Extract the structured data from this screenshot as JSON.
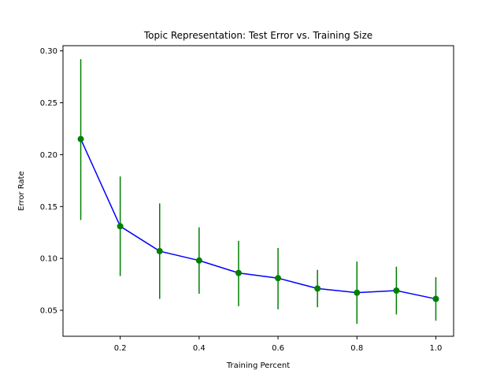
{
  "chart_data": {
    "type": "line",
    "title": "Topic Representation: Test Error vs. Training Size",
    "xlabel": "Training Percent",
    "ylabel": "Error Rate",
    "xlim": [
      0.055,
      1.045
    ],
    "ylim": [
      0.025,
      0.305
    ],
    "xticks": [
      0.2,
      0.4,
      0.6,
      0.8,
      1.0
    ],
    "xtick_labels": [
      "0.2",
      "0.4",
      "0.6",
      "0.8",
      "1.0"
    ],
    "yticks": [
      0.05,
      0.1,
      0.15,
      0.2,
      0.25,
      0.3
    ],
    "ytick_labels": [
      "0.05",
      "0.10",
      "0.15",
      "0.20",
      "0.25",
      "0.30"
    ],
    "grid": false,
    "series": [
      {
        "x": [
          0.1,
          0.2,
          0.3,
          0.4,
          0.5,
          0.6,
          0.7,
          0.8,
          0.9,
          1.0
        ],
        "y": [
          0.215,
          0.131,
          0.107,
          0.098,
          0.086,
          0.081,
          0.071,
          0.067,
          0.069,
          0.061
        ],
        "yerr_low": [
          0.137,
          0.083,
          0.061,
          0.066,
          0.054,
          0.051,
          0.053,
          0.037,
          0.046,
          0.04
        ],
        "yerr_high": [
          0.292,
          0.179,
          0.153,
          0.13,
          0.117,
          0.11,
          0.089,
          0.097,
          0.092,
          0.082
        ],
        "line_color": "#0000ff",
        "marker_color": "#008000",
        "errorbar_color": "#008000"
      }
    ]
  }
}
